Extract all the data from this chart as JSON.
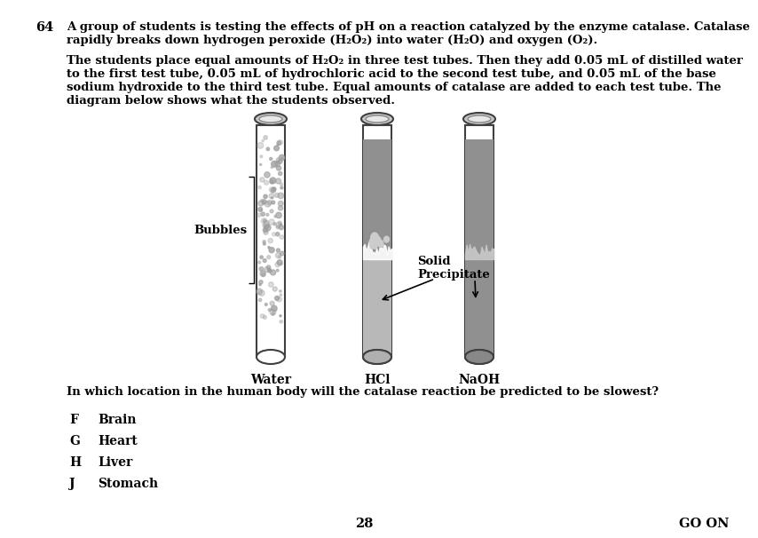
{
  "background_color": "#ffffff",
  "question_number": "64",
  "p1_line1": "A group of students is testing the effects of pH on a reaction catalyzed by the enzyme catalase. Catalase",
  "p1_line2": "rapidly breaks down hydrogen peroxide (H₂O₂) into water (H₂O) and oxygen (O₂).",
  "p2_line1": "The students place equal amounts of H₂O₂ in three test tubes. Then they add 0.05 mL of distilled water",
  "p2_line2": "to the first test tube, 0.05 mL of hydrochloric acid to the second test tube, and 0.05 mL of the base",
  "p2_line3": "sodium hydroxide to the third test tube. Equal amounts of catalase are added to each test tube. The",
  "p2_line4": "diagram below shows what the students observed.",
  "question": "In which location in the human body will the catalase reaction be predicted to be slowest?",
  "choices": [
    {
      "letter": "F",
      "text": "Brain"
    },
    {
      "letter": "G",
      "text": "Heart"
    },
    {
      "letter": "H",
      "text": "Liver"
    },
    {
      "letter": "J",
      "text": "Stomach"
    }
  ],
  "tube_labels": [
    "Water",
    "HCl",
    "NaOH"
  ],
  "bubbles_label": "Bubbles",
  "solid_label_line1": "Solid",
  "solid_label_line2": "Precipitate",
  "page_number": "28",
  "go_on_text": "GO ON",
  "outline_color": "#404040",
  "rim_gray": "#a0a0a0",
  "rim_dark": "#808080",
  "precipitate_gray": "#909090",
  "precipitate_light": "#c8c8c8",
  "naoh_bottom_gray": "#808080"
}
